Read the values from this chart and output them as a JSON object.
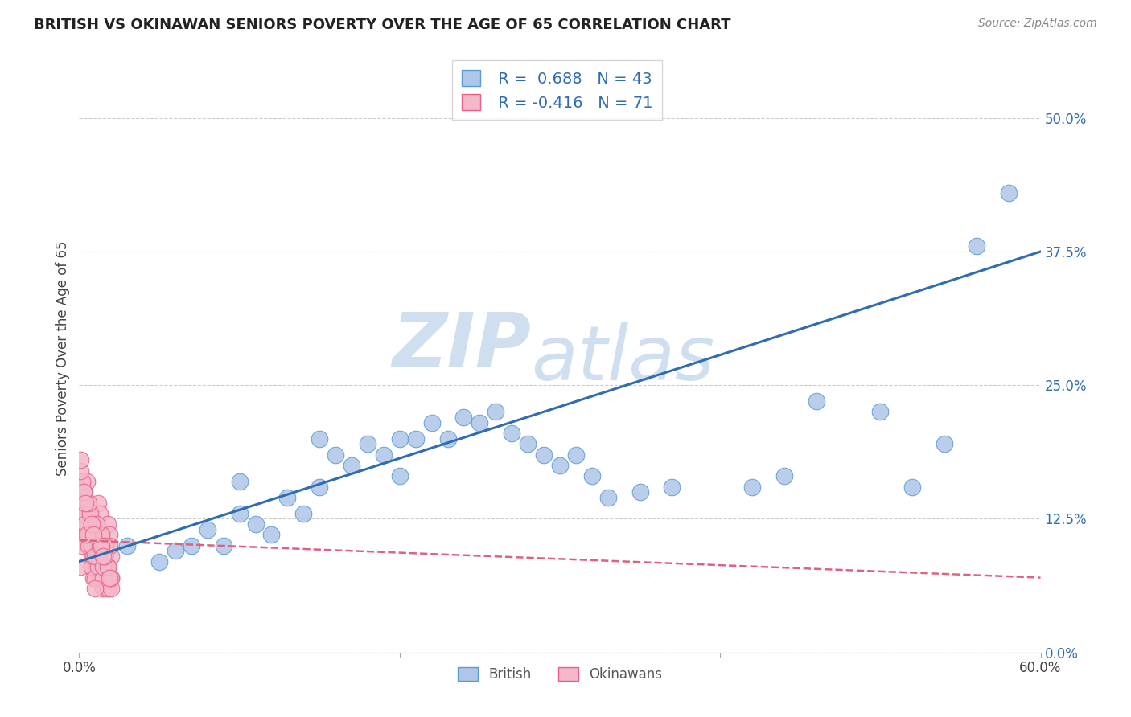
{
  "title": "BRITISH VS OKINAWAN SENIORS POVERTY OVER THE AGE OF 65 CORRELATION CHART",
  "source": "Source: ZipAtlas.com",
  "ylabel": "Seniors Poverty Over the Age of 65",
  "xlim": [
    0.0,
    0.6
  ],
  "ylim": [
    0.0,
    0.55
  ],
  "yticks_right": [
    0.0,
    0.125,
    0.25,
    0.375,
    0.5
  ],
  "ytick_right_labels": [
    "0.0%",
    "12.5%",
    "25.0%",
    "37.5%",
    "50.0%"
  ],
  "british_R": 0.688,
  "british_N": 43,
  "okinawan_R": -0.416,
  "okinawan_N": 71,
  "british_color": "#aec6e8",
  "british_edge": "#5b9bd5",
  "okinawan_color": "#f4b8c8",
  "okinawan_edge": "#e8608a",
  "trend_blue": "#2e6db4",
  "trend_pink": "#e06080",
  "watermark_zip": "ZIP",
  "watermark_atlas": "atlas",
  "watermark_color": "#d0dff0",
  "legend_british": "British",
  "legend_okinawan": "Okinawans",
  "british_x": [
    0.03,
    0.05,
    0.06,
    0.07,
    0.08,
    0.09,
    0.1,
    0.1,
    0.11,
    0.12,
    0.13,
    0.14,
    0.15,
    0.15,
    0.16,
    0.17,
    0.18,
    0.19,
    0.2,
    0.2,
    0.21,
    0.22,
    0.23,
    0.24,
    0.25,
    0.26,
    0.27,
    0.28,
    0.29,
    0.3,
    0.31,
    0.32,
    0.33,
    0.35,
    0.37,
    0.42,
    0.44,
    0.46,
    0.5,
    0.52,
    0.54,
    0.56,
    0.58
  ],
  "british_y": [
    0.1,
    0.085,
    0.095,
    0.1,
    0.115,
    0.1,
    0.13,
    0.16,
    0.12,
    0.11,
    0.145,
    0.13,
    0.2,
    0.155,
    0.185,
    0.175,
    0.195,
    0.185,
    0.2,
    0.165,
    0.2,
    0.215,
    0.2,
    0.22,
    0.215,
    0.225,
    0.205,
    0.195,
    0.185,
    0.175,
    0.185,
    0.165,
    0.145,
    0.15,
    0.155,
    0.155,
    0.165,
    0.235,
    0.225,
    0.155,
    0.195,
    0.38,
    0.43
  ],
  "okinawan_x": [
    0.001,
    0.002,
    0.003,
    0.004,
    0.005,
    0.006,
    0.007,
    0.008,
    0.009,
    0.01,
    0.011,
    0.012,
    0.013,
    0.014,
    0.015,
    0.016,
    0.017,
    0.018,
    0.019,
    0.02,
    0.003,
    0.005,
    0.007,
    0.009,
    0.011,
    0.013,
    0.015,
    0.017,
    0.019,
    0.002,
    0.004,
    0.006,
    0.008,
    0.01,
    0.012,
    0.014,
    0.016,
    0.018,
    0.02,
    0.003,
    0.006,
    0.009,
    0.012,
    0.015,
    0.018,
    0.004,
    0.008,
    0.012,
    0.016,
    0.02,
    0.005,
    0.01,
    0.015,
    0.02,
    0.002,
    0.007,
    0.013,
    0.018,
    0.001,
    0.006,
    0.011,
    0.016,
    0.003,
    0.008,
    0.014,
    0.019,
    0.004,
    0.009,
    0.015,
    0.001,
    0.01
  ],
  "okinawan_y": [
    0.08,
    0.1,
    0.12,
    0.14,
    0.16,
    0.13,
    0.11,
    0.09,
    0.07,
    0.1,
    0.12,
    0.14,
    0.13,
    0.11,
    0.09,
    0.08,
    0.1,
    0.12,
    0.11,
    0.09,
    0.15,
    0.13,
    0.11,
    0.09,
    0.08,
    0.07,
    0.06,
    0.08,
    0.1,
    0.14,
    0.12,
    0.1,
    0.08,
    0.07,
    0.09,
    0.11,
    0.1,
    0.08,
    0.07,
    0.13,
    0.11,
    0.09,
    0.08,
    0.07,
    0.06,
    0.12,
    0.1,
    0.09,
    0.08,
    0.06,
    0.11,
    0.09,
    0.08,
    0.07,
    0.16,
    0.13,
    0.1,
    0.08,
    0.17,
    0.14,
    0.12,
    0.09,
    0.15,
    0.12,
    0.1,
    0.07,
    0.14,
    0.11,
    0.09,
    0.18,
    0.06
  ]
}
